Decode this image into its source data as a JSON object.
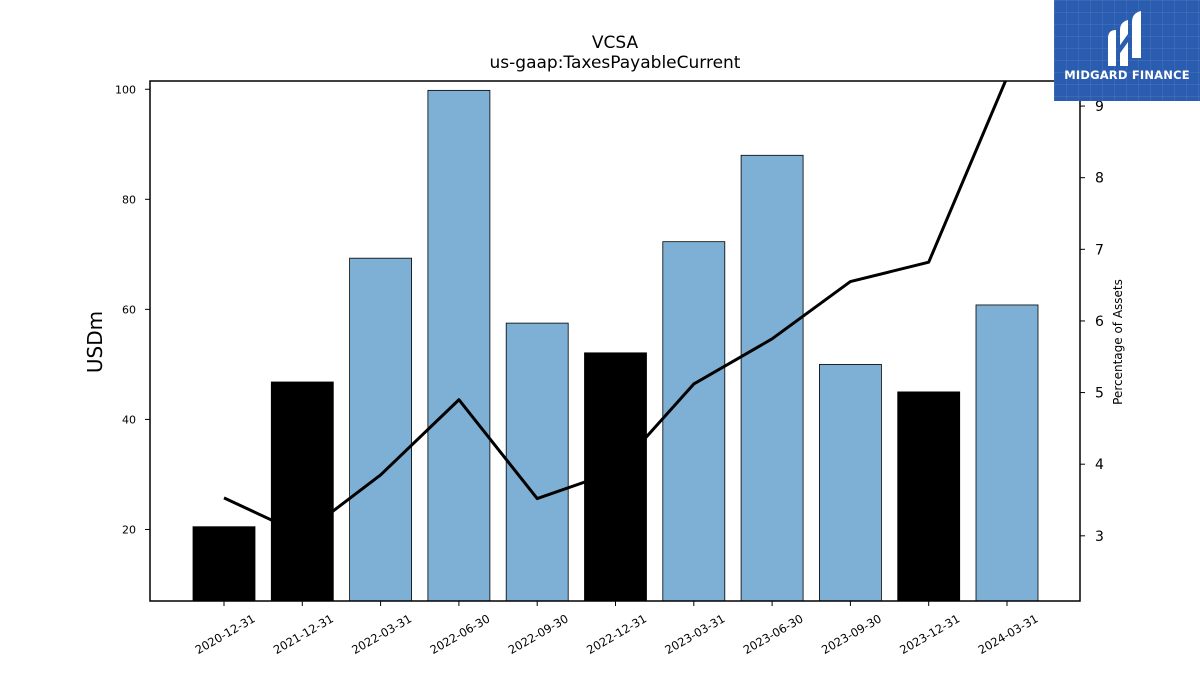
{
  "chart_data": {
    "type": "bar",
    "title": "VCSA",
    "subtitle": "us-gaap:TaxesPayableCurrent",
    "ylabel": "USDm",
    "y2label": "Percentage of Assets",
    "categories": [
      "2020-12-31",
      "2021-12-31",
      "2022-03-31",
      "2022-06-30",
      "2022-09-30",
      "2022-12-31",
      "2023-03-31",
      "2023-06-30",
      "2023-09-30",
      "2023-12-31",
      "2024-03-31"
    ],
    "series": [
      {
        "type": "bar",
        "values": [
          20.5,
          46.8,
          69.3,
          99.8,
          57.5,
          52.1,
          72.3,
          88.0,
          50.0,
          45.0,
          60.8
        ],
        "colors": [
          "#000000",
          "#000000",
          "#7eb0d5",
          "#7eb0d5",
          "#7eb0d5",
          "#000000",
          "#7eb0d5",
          "#7eb0d5",
          "#7eb0d5",
          "#000000",
          "#7eb0d5"
        ]
      },
      {
        "type": "line",
        "axis": "right",
        "values": [
          3.53,
          3.02,
          3.85,
          4.9,
          3.52,
          3.9,
          5.12,
          5.75,
          6.55,
          6.82,
          9.4
        ],
        "color": "#000000"
      }
    ],
    "ylim": [
      7,
      101.5
    ],
    "y2lim": [
      2.09,
      9.35
    ],
    "yticks": [
      20,
      40,
      60,
      80,
      100
    ],
    "y2ticks": [
      3,
      4,
      5,
      6,
      7,
      8,
      9
    ],
    "grid": false
  },
  "logo": {
    "text": "MIDGARD FINANCE",
    "background": "#2a5caf"
  }
}
